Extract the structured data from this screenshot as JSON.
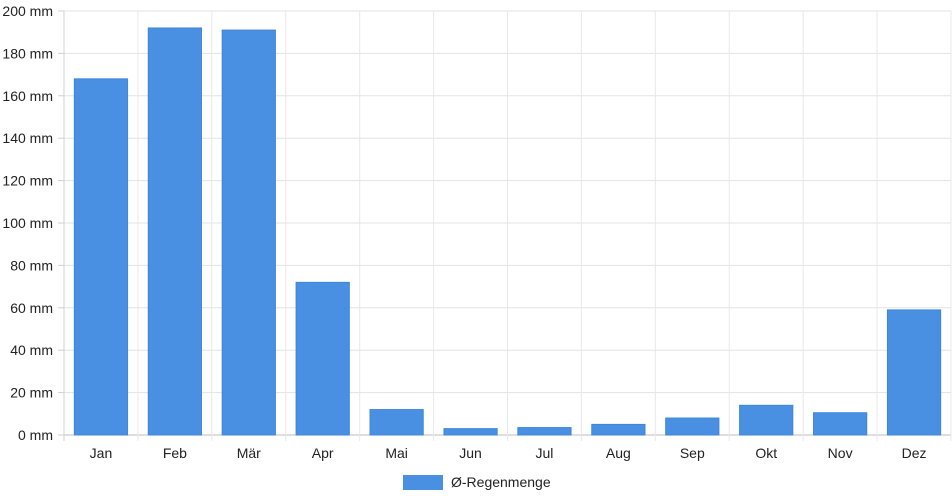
{
  "chart_data": {
    "type": "bar",
    "categories": [
      "Jan",
      "Feb",
      "Mär",
      "Apr",
      "Mai",
      "Jun",
      "Jul",
      "Aug",
      "Sep",
      "Okt",
      "Nov",
      "Dez"
    ],
    "series": [
      {
        "name": "Ø-Regenmenge",
        "values": [
          168,
          192,
          191,
          72,
          12,
          3,
          3.5,
          5,
          8,
          14,
          10.5,
          59
        ],
        "color": "#4a90e2"
      }
    ],
    "y_ticks": [
      "0 mm",
      "20 mm",
      "40 mm",
      "60 mm",
      "80 mm",
      "100 mm",
      "120 mm",
      "140 mm",
      "160 mm",
      "180 mm",
      "200 mm"
    ],
    "ylim": [
      0,
      200
    ],
    "y_step": 20,
    "grid": true,
    "legend_position": "bottom"
  }
}
